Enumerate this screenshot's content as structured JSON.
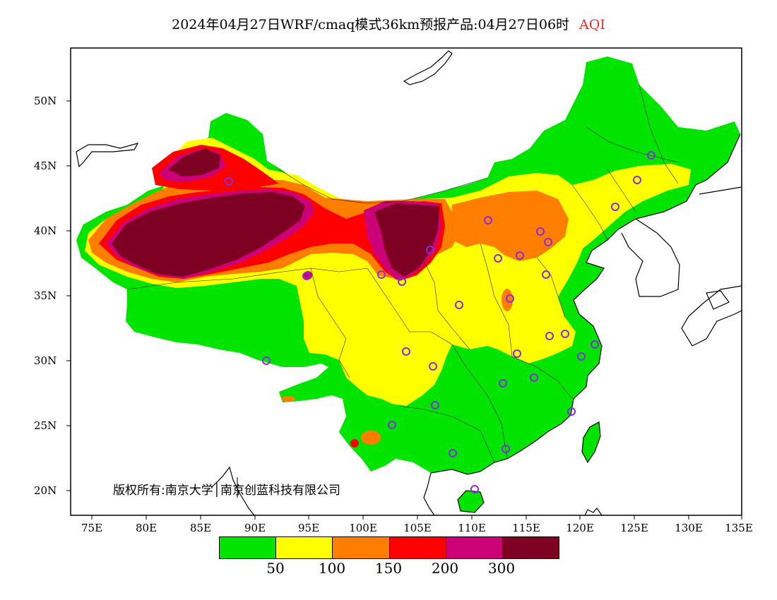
{
  "title": {
    "main": "2024年04月27日WRF/cmaq模式36km预报产品:04月27日06时",
    "product": "AQI"
  },
  "axes": {
    "y_labels": [
      "50N",
      "45N",
      "40N",
      "35N",
      "30N",
      "25N",
      "20N"
    ],
    "x_labels": [
      "75E",
      "80E",
      "85E",
      "90E",
      "95E",
      "100E",
      "105E",
      "110E",
      "115E",
      "120E",
      "125E",
      "130E",
      "135E"
    ],
    "lon_range": [
      73,
      135
    ],
    "lat_range": [
      18,
      54
    ]
  },
  "copyright": "版权所有:南京大学│南京创蓝科技有限公司",
  "legend": {
    "colors": [
      "#00e400",
      "#ffff00",
      "#ff7e00",
      "#ff0000",
      "#cc0077",
      "#7e0023"
    ],
    "labels": [
      "50",
      "100",
      "150",
      "200",
      "300"
    ]
  },
  "map_colors": {
    "good": "#00e400",
    "moderate": "#ffff00",
    "usg": "#ff7e00",
    "unhealthy": "#ff0000",
    "very_unhealthy": "#cc0077",
    "hazardous": "#7e0023",
    "station_ring": "#8a2be2"
  }
}
